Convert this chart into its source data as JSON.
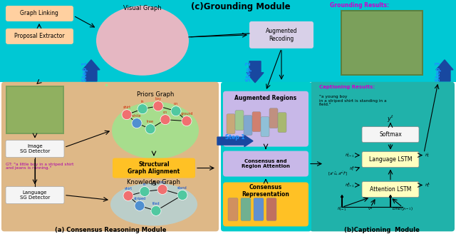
{
  "fig_width": 6.4,
  "fig_height": 3.28,
  "title_c": "(c)Grounding Module",
  "title_a": "(a) Consensus Reasoning Module",
  "title_b": "(b)Captioning  Module",
  "grounding_results": "Grounding Results:",
  "captioning_results": "Captioning Results:",
  "captioning_text": "\"a young boy\nin a striped shirt is standing in a\nfield.\"",
  "gt_text": "GT: \"a little boy in a striped shirt\nand jeans is running.\"",
  "graph_linking": "Graph Linking",
  "proposal_extractor": "Proposal Extractor",
  "visual_graph": "Visual Graph",
  "augmented_recoding": "Augmented\nRecoding",
  "augmented_regions": "Augmented Regions",
  "priors_graph": "Priors Graph",
  "knowledge_graph": "Knowledge Graph",
  "structural_alignment": "Structural\nGraph Alignment",
  "image_sg": "Image\nSG Detector",
  "lang_sg": "Language\nSG Detector",
  "consensus_region": "Consensus and\nRegion Attention",
  "consensus_repr": "Consensus\nRepresentation",
  "language_lstm": "Language LSTM",
  "attention_lstm": "Attention LSTM",
  "softmax": "Softmax",
  "cyan_color": "#00C8D4",
  "dark_blue_arrow": "#1848A0",
  "tan_color": "#DEB887",
  "teal_color": "#20B2AA",
  "pink_oval": "#FFB6C1",
  "lavender": "#C8B8E8",
  "yellow_box": "#FFC125",
  "white_box": "#F5F5F5",
  "green_oval": "#90EE90",
  "blue_oval": "#ADD8E6",
  "node_pink": "#F07070",
  "node_teal": "#50C8A0",
  "node_blue": "#5090D0"
}
